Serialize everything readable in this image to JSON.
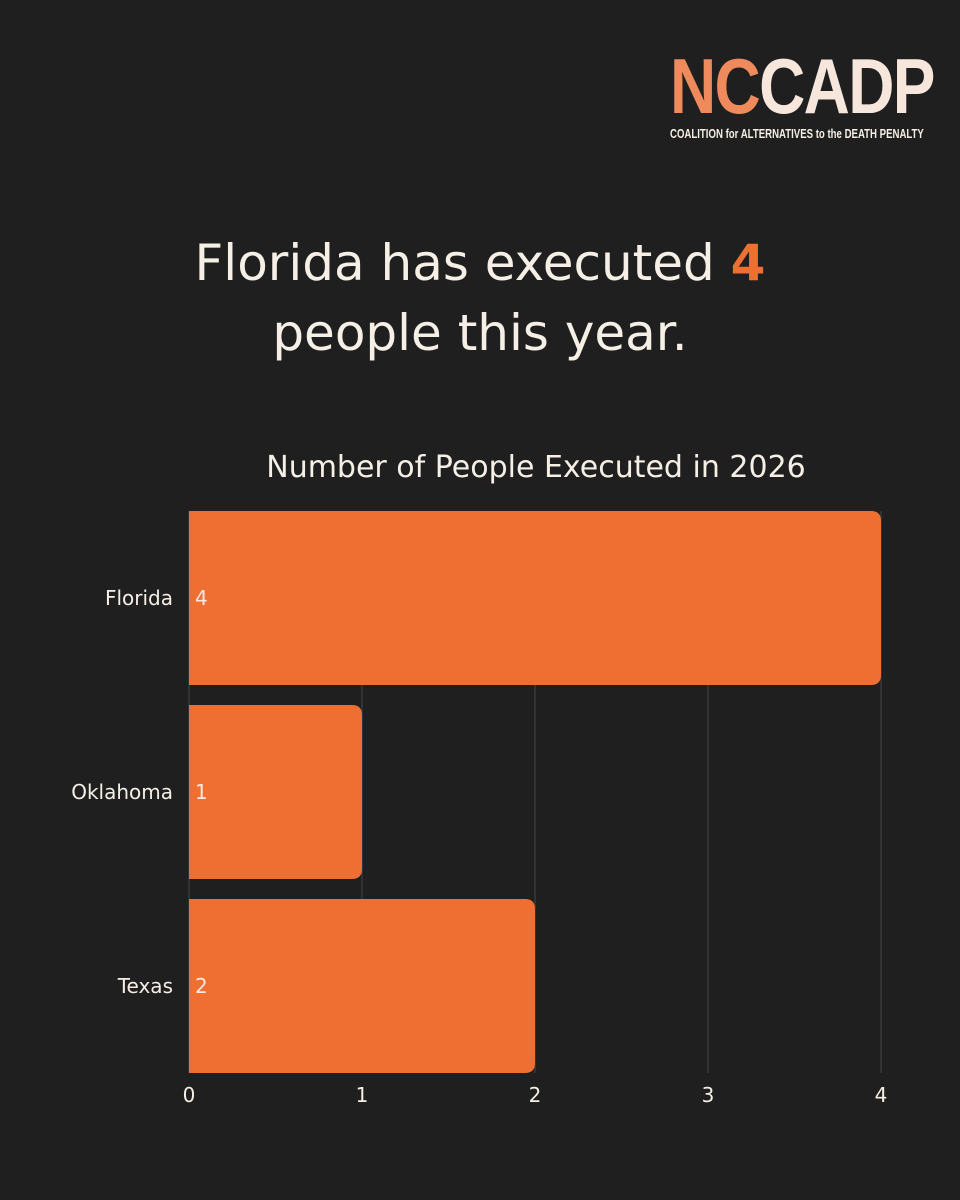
{
  "logo": {
    "nc": "NC",
    "cadp": "CADP",
    "tagline": "COALITION for ALTERNATIVES to the DEATH PENALTY"
  },
  "headline": {
    "before": "Florida has executed ",
    "highlight": "4",
    "after": " people this year."
  },
  "colors": {
    "background": "#1f1f1f",
    "bar": "#ef6e32",
    "text": "#f5efe6",
    "accent": "#ef6e32"
  },
  "chart_data": {
    "type": "bar",
    "orientation": "horizontal",
    "title": "Number of People Executed in 2026",
    "categories": [
      "Florida",
      "Oklahoma",
      "Texas"
    ],
    "values": [
      4,
      1,
      2
    ],
    "xlim": [
      0,
      4
    ],
    "xticks": [
      0,
      1,
      2,
      3,
      4
    ],
    "xlabel": "",
    "ylabel": "",
    "grid": true,
    "data_labels": true
  }
}
